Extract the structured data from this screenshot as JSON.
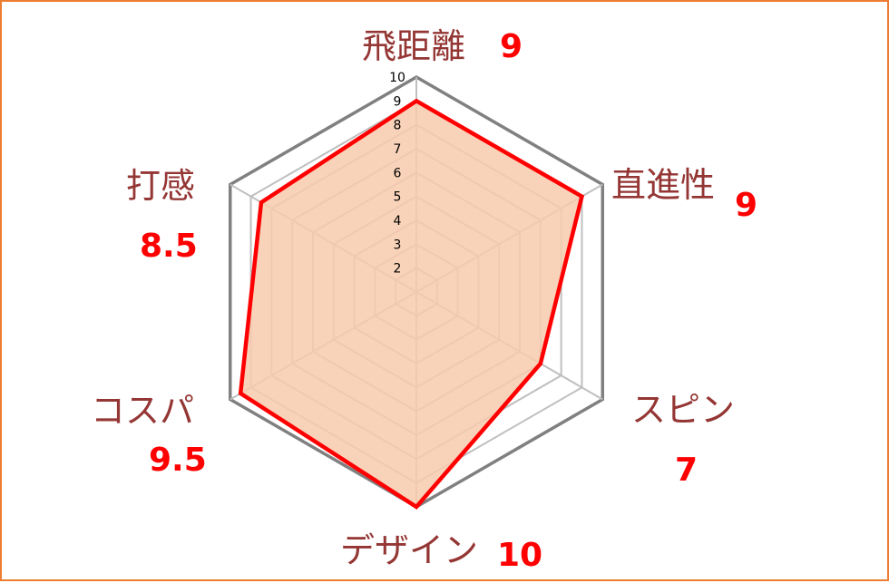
{
  "chart_data": {
    "type": "radar",
    "categories": [
      "飛距離",
      "直進性",
      "スピン",
      "デザイン",
      "コスパ",
      "打感"
    ],
    "values": [
      9,
      9,
      7,
      10,
      9.5,
      8.5
    ],
    "value_labels": [
      "9",
      "9",
      "7",
      "10",
      "9.5",
      "8.5"
    ],
    "rlim": [
      1,
      10
    ],
    "ticks": [
      2,
      3,
      4,
      5,
      6,
      7,
      8,
      9,
      10
    ],
    "colors": {
      "border": "#ED7D31",
      "series_line": "#FF0000",
      "series_fill": "#F8CBAD",
      "grid_outer": "#808080",
      "grid_inner": "#BFBFBF",
      "category_text": "#943634",
      "value_text": "#FF0000"
    }
  }
}
